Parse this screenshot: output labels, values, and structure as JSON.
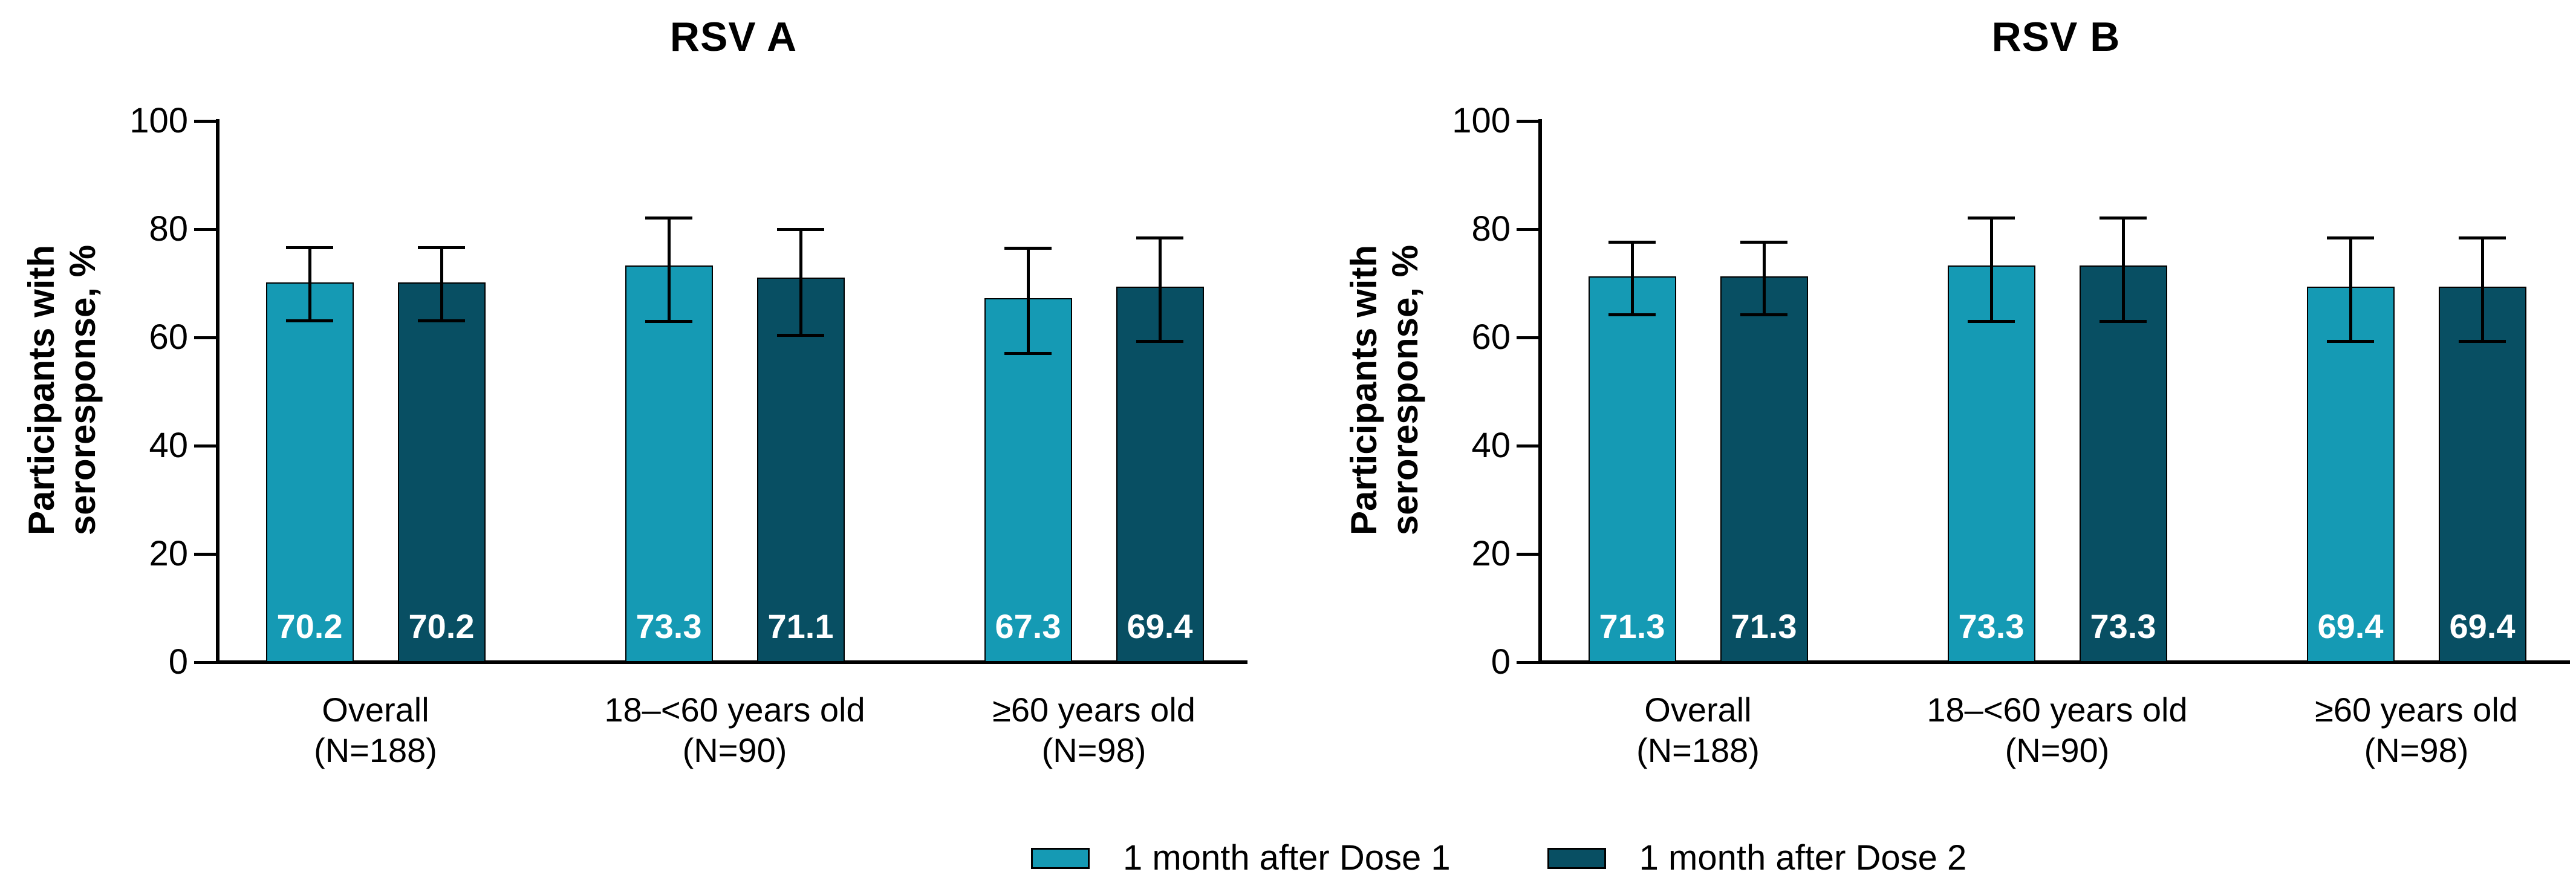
{
  "figure": {
    "background": "#ffffff",
    "axis_color": "#000000",
    "value_label_color": "#ffffff"
  },
  "chart_data": [
    {
      "type": "bar",
      "title": "RSV A",
      "ylabel": "Participants with seroresponse, %",
      "ylabel_line1": "Participants with",
      "ylabel_line2": "seroresponse, %",
      "ylim": [
        0,
        100
      ],
      "yticks": [
        0,
        20,
        40,
        60,
        80,
        100
      ],
      "grid": false,
      "error_bars": "95% CI (estimated from figure)",
      "categories": [
        {
          "label": "Overall",
          "n": "(N=188)"
        },
        {
          "label": "18–<60 years old",
          "n": "(N=90)"
        },
        {
          "label": "≥60 years old",
          "n": "(N=98)"
        }
      ],
      "series": [
        {
          "name": "1 month after Dose 1",
          "color": "#159AB4",
          "values": [
            70.2,
            73.3,
            67.3
          ],
          "ci_low": [
            63.1,
            63.0,
            57.1
          ],
          "ci_high": [
            76.6,
            82.1,
            76.5
          ]
        },
        {
          "name": "1 month after Dose 2",
          "color": "#084F63",
          "values": [
            70.2,
            71.1,
            69.4
          ],
          "ci_low": [
            63.1,
            60.5,
            59.3
          ],
          "ci_high": [
            76.6,
            80.0,
            78.4
          ]
        }
      ]
    },
    {
      "type": "bar",
      "title": "RSV B",
      "ylabel": "Participants with seroresponse, %",
      "ylabel_line1": "Participants with",
      "ylabel_line2": "seroresponse, %",
      "ylim": [
        0,
        100
      ],
      "yticks": [
        0,
        20,
        40,
        60,
        80,
        100
      ],
      "grid": false,
      "error_bars": "95% CI (estimated from figure)",
      "categories": [
        {
          "label": "Overall",
          "n": "(N=188)"
        },
        {
          "label": "18–<60 years old",
          "n": "(N=90)"
        },
        {
          "label": "≥60 years old",
          "n": "(N=98)"
        }
      ],
      "series": [
        {
          "name": "1 month after Dose 1",
          "color": "#159AB4",
          "values": [
            71.3,
            73.3,
            69.4
          ],
          "ci_low": [
            64.2,
            63.0,
            59.3
          ],
          "ci_high": [
            77.7,
            82.1,
            78.4
          ]
        },
        {
          "name": "1 month after Dose 2",
          "color": "#084F63",
          "values": [
            71.3,
            73.3,
            69.4
          ],
          "ci_low": [
            64.2,
            63.0,
            59.3
          ],
          "ci_high": [
            77.7,
            82.1,
            78.4
          ]
        }
      ]
    }
  ],
  "legend": {
    "items": [
      {
        "label": "1 month after Dose 1",
        "color": "#159AB4"
      },
      {
        "label": "1 month after Dose 2",
        "color": "#084F63"
      }
    ]
  }
}
